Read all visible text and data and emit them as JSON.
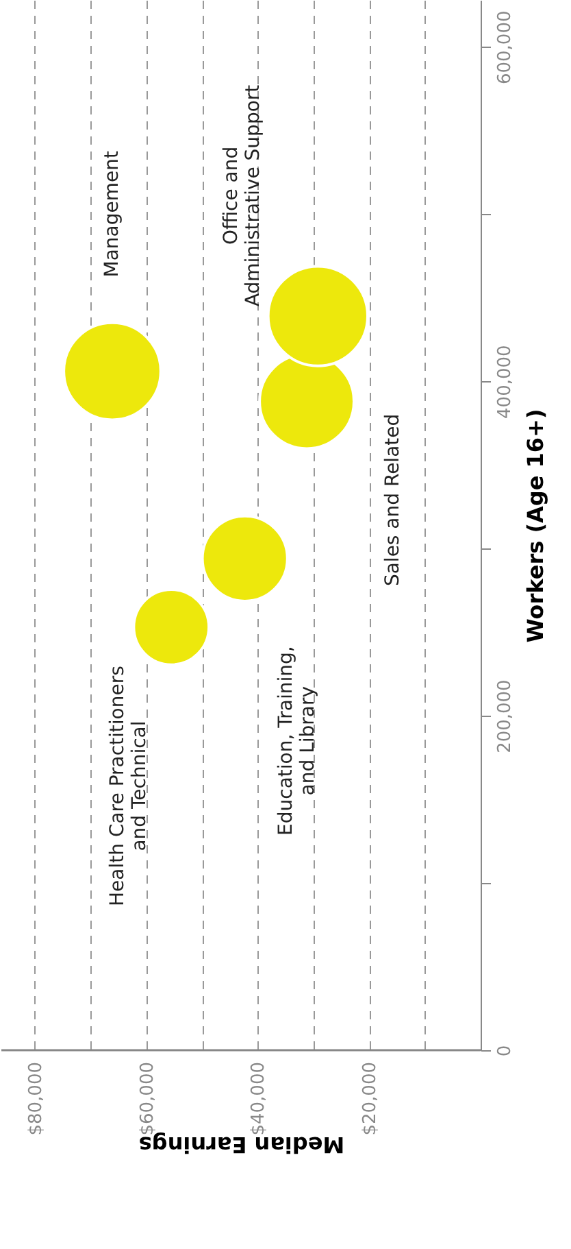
{
  "chart_data": {
    "type": "bubble",
    "xlabel": "Median Earnings",
    "ylabel": "Workers (Age 16+)",
    "ylim": [
      0,
      628000
    ],
    "yticks": [
      0,
      {
        "value": 100000,
        "label": null
      },
      {
        "value": 200000,
        "label": "200,000"
      },
      {
        "value": 300000,
        "label": null
      },
      {
        "value": 400000,
        "label": "400,000"
      },
      {
        "value": 500000,
        "label": null
      },
      {
        "value": 600000,
        "label": "600,000"
      }
    ],
    "xlim": [
      86000,
      0
    ],
    "xticks": [
      {
        "value": 80000,
        "label": "$80,000"
      },
      {
        "value": 70000,
        "label": null
      },
      {
        "value": 60000,
        "label": "$60,000"
      },
      {
        "value": 50000,
        "label": null
      },
      {
        "value": 40000,
        "label": "$40,000"
      },
      {
        "value": 30000,
        "label": null
      },
      {
        "value": 20000,
        "label": "$20,000"
      },
      {
        "value": 10000,
        "label": null
      }
    ],
    "grid": "x",
    "legend": false,
    "series": [
      {
        "name": "Health Care Practitioners\nand Technical",
        "color": "#ede80c",
        "x": [
          55500
        ],
        "values": [
          253000
        ],
        "sizes": [
          0.57
        ]
      },
      {
        "name": "Education, Training,\nand Library",
        "color": "#ede80c",
        "x": [
          42300
        ],
        "values": [
          294000
        ],
        "sizes": [
          0.73
        ]
      },
      {
        "name": "Management",
        "color": "#ede80c",
        "x": [
          66100
        ],
        "values": [
          406000
        ],
        "sizes": [
          0.95
        ]
      },
      {
        "name": "Sales and Related",
        "color": "#ede80c",
        "x": [
          31200
        ],
        "values": [
          388000
        ],
        "sizes": [
          0.9
        ]
      },
      {
        "name": "Office and\nAdministrative Support",
        "color": "#ede80c",
        "x": [
          29200
        ],
        "values": [
          439000
        ],
        "sizes": [
          1.0
        ]
      }
    ]
  }
}
